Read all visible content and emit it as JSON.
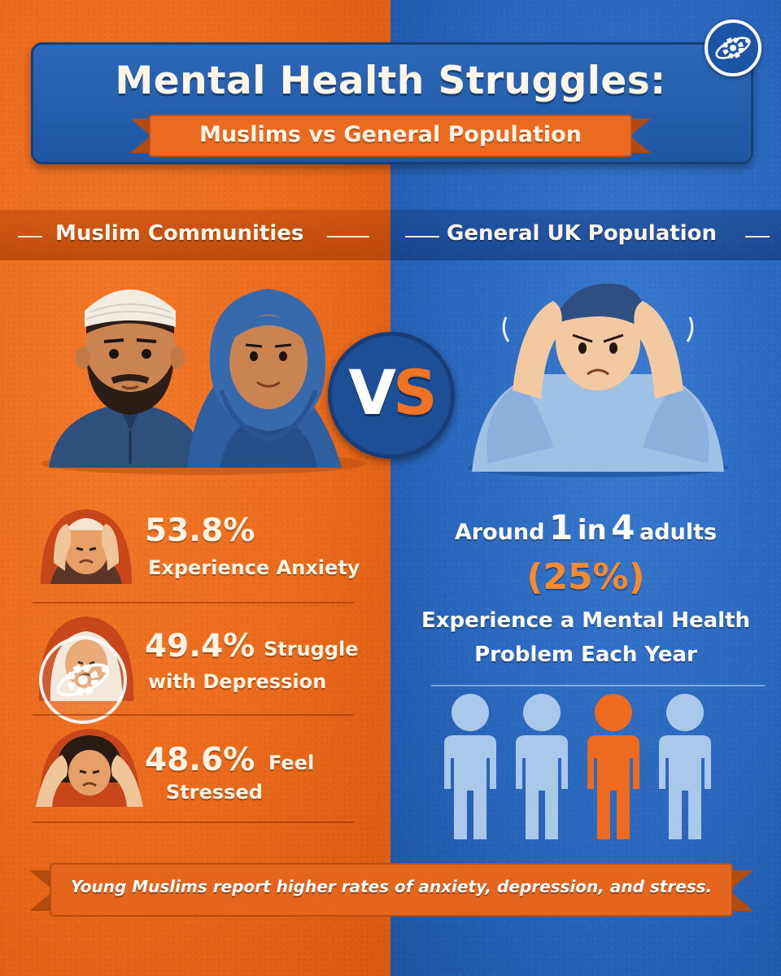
{
  "title": "Mental Health Struggles:",
  "subtitle": "Muslims vs General Population",
  "left_section": {
    "heading": "Muslim Communities",
    "stats": [
      {
        "value": "53.8%",
        "line1_rest": "",
        "line2": "Experience Anxiety",
        "icon": "stressed-man-icon"
      },
      {
        "value": "49.4%",
        "line1_rest": "Struggle",
        "line2": "with Depression",
        "icon": "sad-woman-icon"
      },
      {
        "value": "48.6%",
        "line1_rest": "Feel",
        "line2": "Stressed",
        "icon": "stressed-girl-icon"
      }
    ]
  },
  "vs_label": {
    "v": "V",
    "s": "S"
  },
  "right_section": {
    "heading": "General UK Population",
    "around": "Around",
    "one": "1",
    "in": "in",
    "four": "4",
    "adults": "adults",
    "percent": "(25%)",
    "desc_line1": "Experience a Mental Health",
    "desc_line2": "Problem Each Year",
    "people_total": 4,
    "people_highlighted": 1
  },
  "footer": "Young Muslims report higher rates of anxiety, depression, and stress.",
  "colors": {
    "orange": "#ea6a1b",
    "blue": "#2a67bd",
    "accent_orange": "#f58a2e",
    "person_light_blue": "#a9c8ea",
    "person_orange": "#ee6a1e"
  }
}
